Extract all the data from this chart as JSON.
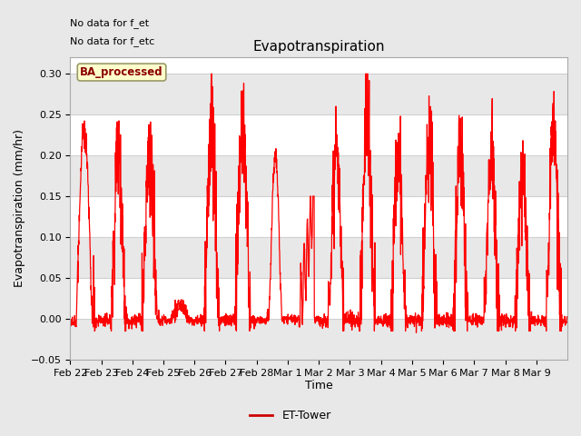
{
  "title": "Evapotranspiration",
  "xlabel": "Time",
  "ylabel": "Evapotranspiration (mm/hr)",
  "ylim": [
    -0.05,
    0.32
  ],
  "yticks": [
    -0.05,
    0.0,
    0.05,
    0.1,
    0.15,
    0.2,
    0.25,
    0.3
  ],
  "background_color": "#e8e8e8",
  "plot_bg_color": "#ffffff",
  "line_color": "#ff0000",
  "annotations_topleft": [
    "No data for f_et",
    "No data for f_etc"
  ],
  "badge_text": "BA_processed",
  "badge_bg": "#ffffcc",
  "badge_border": "#999966",
  "legend_label": "ET-Tower",
  "legend_line_color": "#cc0000",
  "x_labels": [
    "Feb 22",
    "Feb 23",
    "Feb 24",
    "Feb 25",
    "Feb 26",
    "Feb 27",
    "Feb 28",
    "Mar 1",
    "Mar 2",
    "Mar 3",
    "Mar 4",
    "Mar 5",
    "Mar 6",
    "Mar 7",
    "Mar 8",
    "Mar 9"
  ],
  "num_days": 16,
  "title_fontsize": 11,
  "axis_label_fontsize": 9,
  "tick_fontsize": 8,
  "annotation_fontsize": 8,
  "grid_color": "#d0d0d0",
  "alt_band_color": "#e8e8e8",
  "grid_linewidth": 0.8
}
